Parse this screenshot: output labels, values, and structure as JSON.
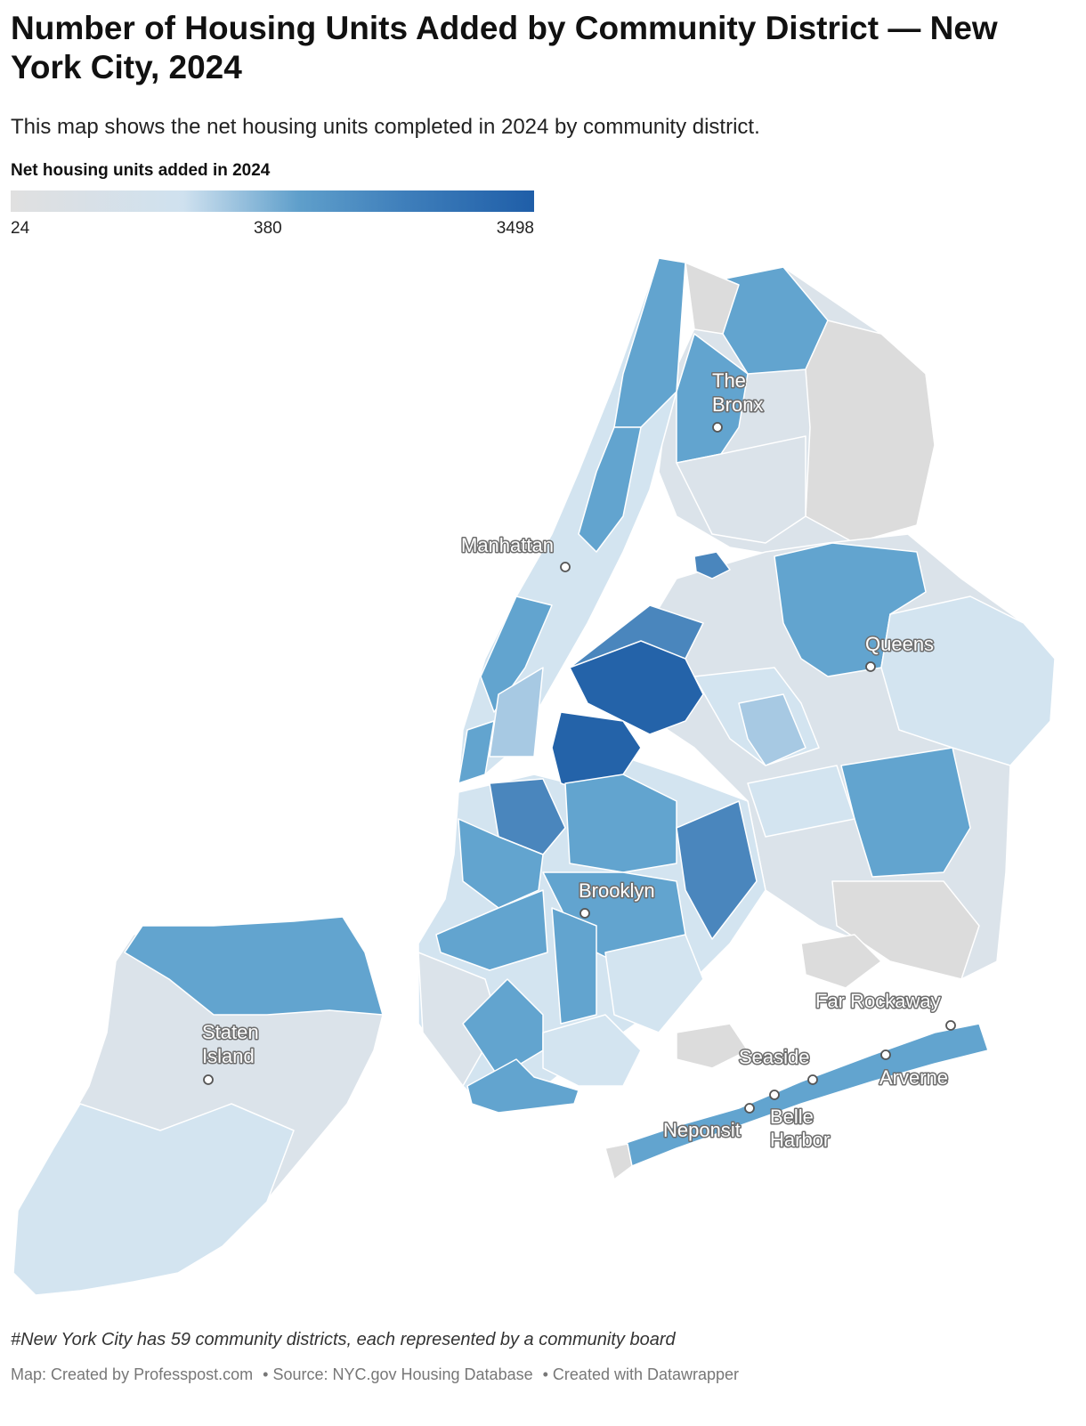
{
  "title": "Number of Housing Units Added by Community District — New York City, 2024",
  "subtitle": "This map shows the net housing units completed in 2024 by community district.",
  "legend": {
    "title": "Net housing units added in 2024",
    "min_label": "24",
    "mid_label": "380",
    "max_label": "3498",
    "colors": [
      "#e0e0e0",
      "#cfe1ef",
      "#5f9fcb",
      "#3f7fbb",
      "#1f5ea8"
    ]
  },
  "map": {
    "place_labels": {
      "the_bronx": [
        "The",
        "Bronx"
      ],
      "manhattan": "Manhattan",
      "queens": "Queens",
      "brooklyn": "Brooklyn",
      "staten_island": [
        "Staten",
        "Island"
      ],
      "far_rockaway": "Far Rockaway",
      "seaside": "Seaside",
      "arverne": "Arverne",
      "neponsit": "Neponsit",
      "belle_harbor": [
        "Belle",
        "Harbor"
      ]
    },
    "region_colors": {
      "no_data": "#dcdcdc",
      "very_low": "#dbe3ea",
      "low": "#d3e4f0",
      "low_mid": "#a7c9e3",
      "mid": "#62a4cf",
      "high": "#4a86bd",
      "very_high": "#2463a9"
    }
  },
  "footnote": "#New York City has 59 community districts, each represented by a community board",
  "credits": {
    "map": "Map: Created by Professpost.com",
    "source": "• Source: NYC.gov Housing Database",
    "tool": "• Created with Datawrapper"
  }
}
